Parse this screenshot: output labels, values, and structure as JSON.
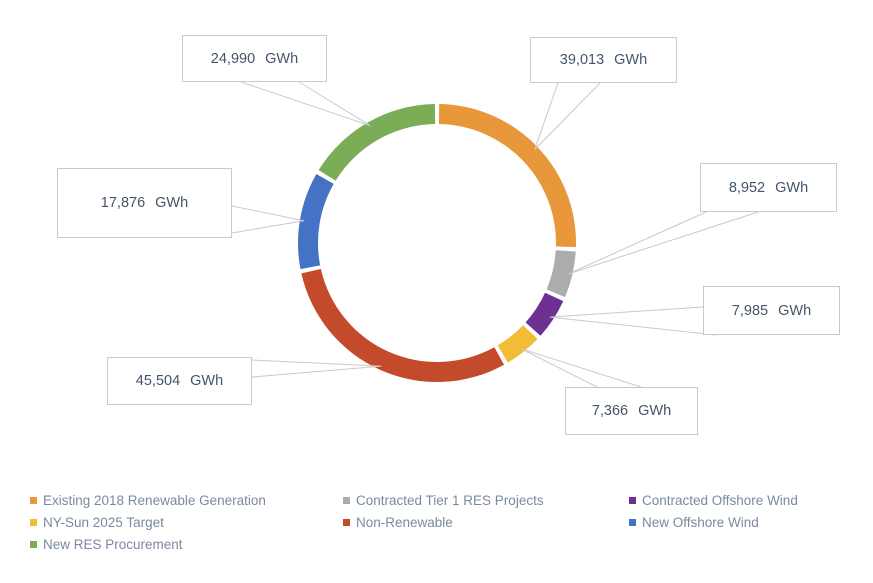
{
  "chart_data": {
    "type": "pie",
    "subtype": "donut",
    "title": "",
    "unit": "GWh",
    "start_angle_deg": 0,
    "direction": "clockwise",
    "donut_hole_ratio": 0.86,
    "legend_position": "bottom",
    "total": 151686,
    "segments": [
      {
        "key": "existing",
        "label": "Existing 2018 Renewable Generation",
        "value": 39013,
        "value_label": "39,013 GWh",
        "color": "#E8973B"
      },
      {
        "key": "tier1",
        "label": "Contracted Tier 1 RES Projects",
        "value": 8952,
        "value_label": "8,952 GWh",
        "color": "#ACACAC"
      },
      {
        "key": "offshore_contracted",
        "label": "Contracted Offshore Wind",
        "value": 7985,
        "value_label": "7,985 GWh",
        "color": "#6E3092"
      },
      {
        "key": "nysun",
        "label": "NY-Sun 2025 Target",
        "value": 7366,
        "value_label": "7,366 GWh",
        "color": "#F2BC35"
      },
      {
        "key": "nonrenewable",
        "label": "Non-Renewable",
        "value": 45504,
        "value_label": "45,504 GWh",
        "color": "#C44A2C"
      },
      {
        "key": "offshore_new",
        "label": "New Offshore Wind",
        "value": 17876,
        "value_label": "17,876 GWh",
        "color": "#4472C4"
      },
      {
        "key": "res_new",
        "label": "New RES Procurement",
        "value": 24990,
        "value_label": "24,990 GWh",
        "color": "#7AAD56"
      }
    ]
  },
  "callouts": {
    "existing": {
      "value": "39,013",
      "unit": "GWh"
    },
    "tier1": {
      "value": "8,952",
      "unit": "GWh"
    },
    "offshore_contracted": {
      "value": "7,985",
      "unit": "GWh"
    },
    "nysun": {
      "value": "7,366",
      "unit": "GWh"
    },
    "nonrenewable": {
      "value": "45,504",
      "unit": "GWh"
    },
    "offshore_new": {
      "value": "17,876",
      "unit": "GWh"
    },
    "res_new": {
      "value": "24,990",
      "unit": "GWh"
    }
  },
  "legend": {
    "items": [
      {
        "key": "existing",
        "label": "Existing 2018 Renewable Generation",
        "color": "#E8973B"
      },
      {
        "key": "tier1",
        "label": "Contracted Tier 1 RES Projects",
        "color": "#ACACAC"
      },
      {
        "key": "offshore_contracted",
        "label": "Contracted Offshore Wind",
        "color": "#6E3092"
      },
      {
        "key": "nysun",
        "label": "NY-Sun 2025 Target",
        "color": "#F2BC35"
      },
      {
        "key": "nonrenewable",
        "label": "Non-Renewable",
        "color": "#C44A2C"
      },
      {
        "key": "offshore_new",
        "label": "New Offshore Wind",
        "color": "#4472C4"
      },
      {
        "key": "res_new",
        "label": "New RES Procurement",
        "color": "#7AAD56"
      }
    ]
  },
  "style": {
    "leader_line_color": "#C9C9C9",
    "callout_border_color": "#C9C9C9",
    "callout_text_color": "#44546A",
    "legend_text_color": "#7B89A0",
    "background": "#FFFFFF"
  }
}
